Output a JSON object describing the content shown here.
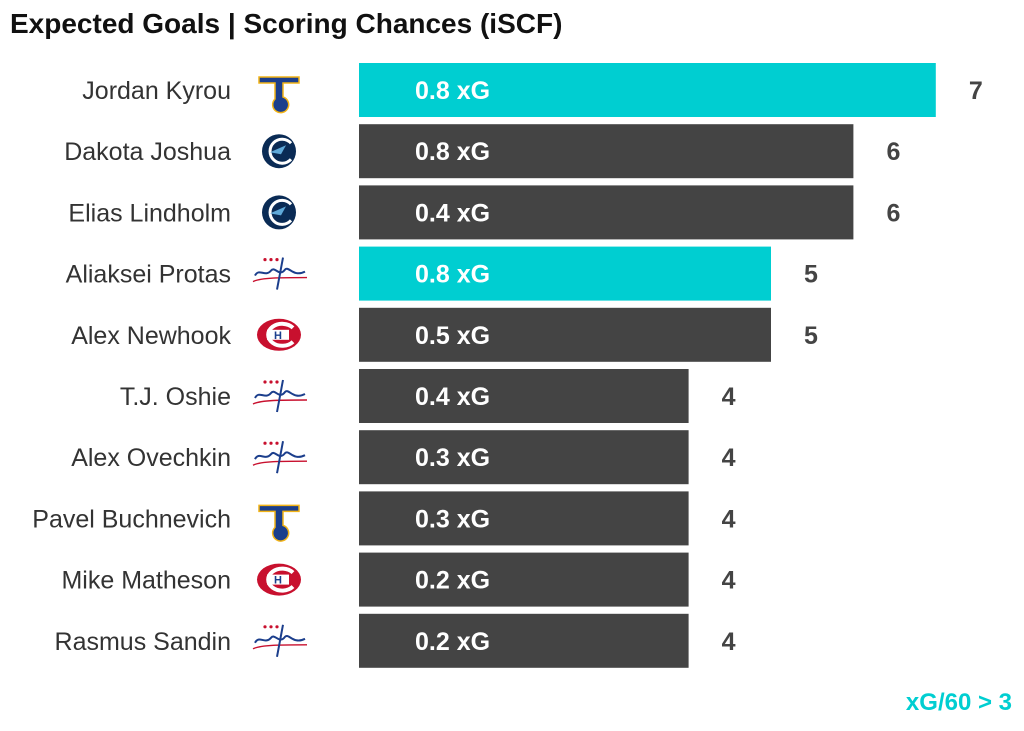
{
  "title": "Expected Goals | Scoring Chances (iSCF)",
  "legend_note": "xG/60 > 3",
  "colors": {
    "highlight": "#00CED1",
    "default": "#444444",
    "name_text": "#333333",
    "value_text": "#444444",
    "bar_label_text": "#ffffff",
    "title": "#111111"
  },
  "chart_data": {
    "type": "bar",
    "orientation": "horizontal",
    "title": "Expected Goals | Scoring Chances (iSCF)",
    "categories": [
      "Jordan Kyrou",
      "Dakota Joshua",
      "Elias Lindholm",
      "Aliaksei Protas",
      "Alex Newhook",
      "T.J. Oshie",
      "Alex Ovechkin",
      "Pavel Buchnevich",
      "Mike Matheson",
      "Rasmus Sandin"
    ],
    "values": [
      7,
      6,
      6,
      5,
      5,
      4,
      4,
      4,
      4,
      4
    ],
    "bar_labels": [
      "0.8 xG",
      "0.8 xG",
      "0.4 xG",
      "0.8 xG",
      "0.5 xG",
      "0.4 xG",
      "0.3 xG",
      "0.3 xG",
      "0.2 xG",
      "0.2 xG"
    ],
    "teams": [
      "blues",
      "canucks",
      "canucks",
      "capitals",
      "canadiens",
      "capitals",
      "capitals",
      "blues",
      "canadiens",
      "capitals"
    ],
    "highlighted": [
      true,
      false,
      false,
      true,
      false,
      false,
      false,
      false,
      false,
      false
    ],
    "xlim": [
      0,
      7
    ],
    "grid": false,
    "legend": "bottom-right"
  }
}
